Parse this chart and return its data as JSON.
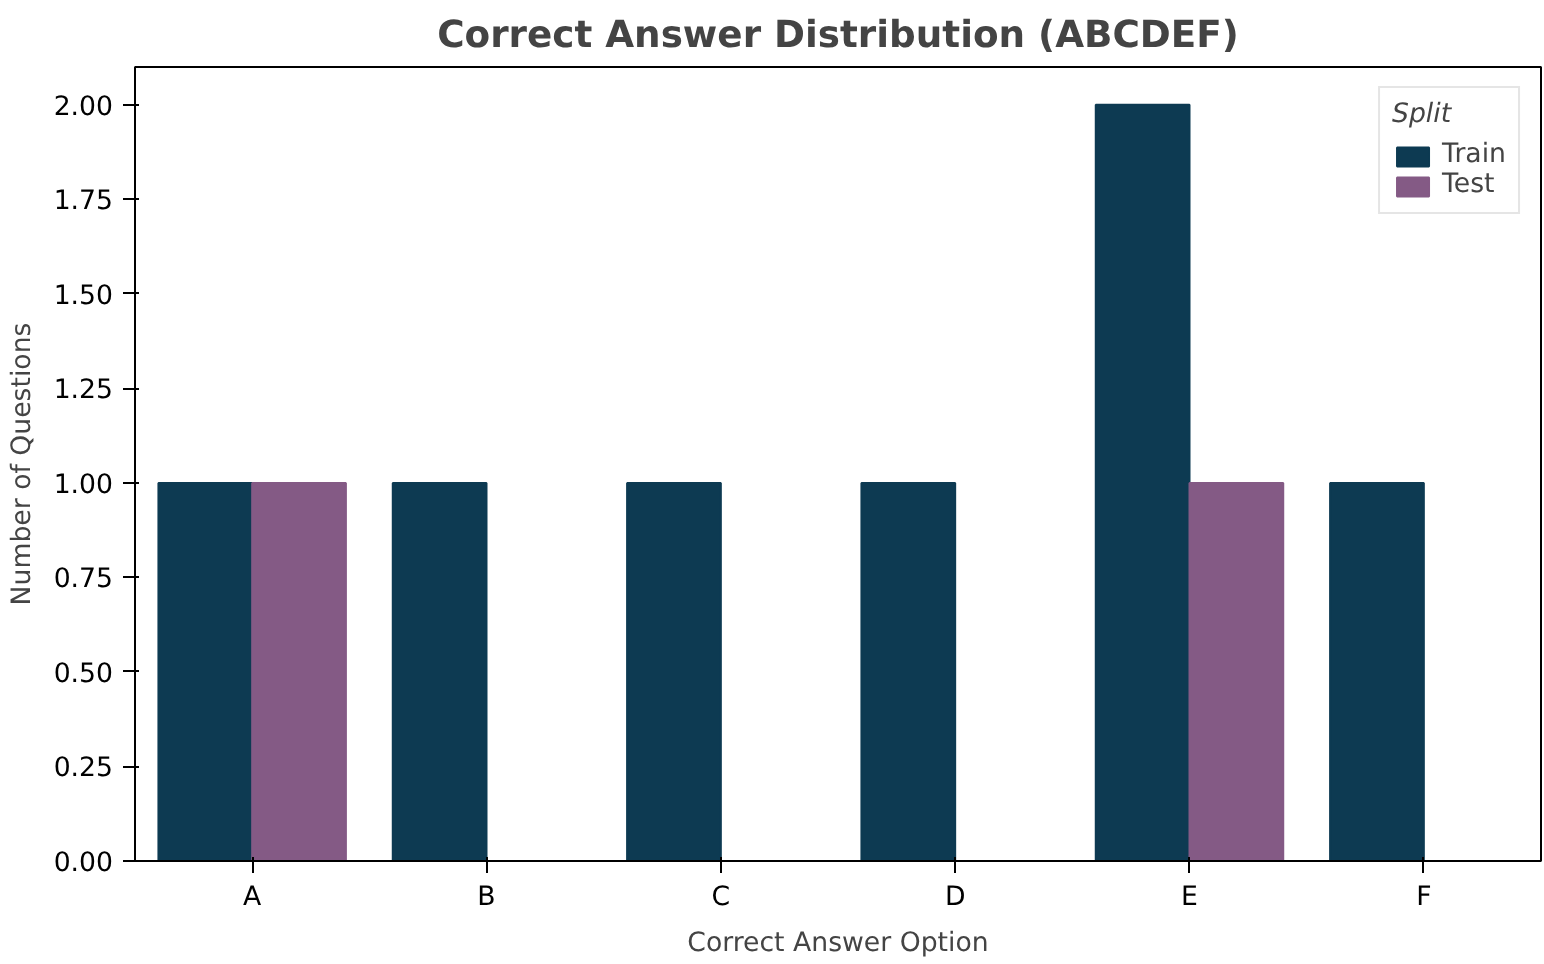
{
  "chart_data": {
    "type": "bar",
    "title": "Correct Answer Distribution (ABCDEF)",
    "xlabel": "Correct Answer Option",
    "ylabel": "Number of Questions",
    "legend_title": "Split",
    "categories": [
      "A",
      "B",
      "C",
      "D",
      "E",
      "F"
    ],
    "series": [
      {
        "name": "Train",
        "color": "#0d3a52",
        "values": [
          1,
          1,
          1,
          1,
          2,
          1
        ]
      },
      {
        "name": "Test",
        "color": "#845a85",
        "values": [
          1,
          null,
          null,
          null,
          1,
          null
        ]
      }
    ],
    "ylim": [
      0,
      2.1
    ],
    "yticks": [
      {
        "value": 0,
        "label": "0.00"
      },
      {
        "value": 0.25,
        "label": "0.25"
      },
      {
        "value": 0.5,
        "label": "0.50"
      },
      {
        "value": 0.75,
        "label": "0.75"
      },
      {
        "value": 1,
        "label": "1.00"
      },
      {
        "value": 1.25,
        "label": "1.25"
      },
      {
        "value": 1.5,
        "label": "1.50"
      },
      {
        "value": 1.75,
        "label": "1.75"
      },
      {
        "value": 2,
        "label": "2.00"
      }
    ],
    "grid": false,
    "legend": "top right"
  }
}
